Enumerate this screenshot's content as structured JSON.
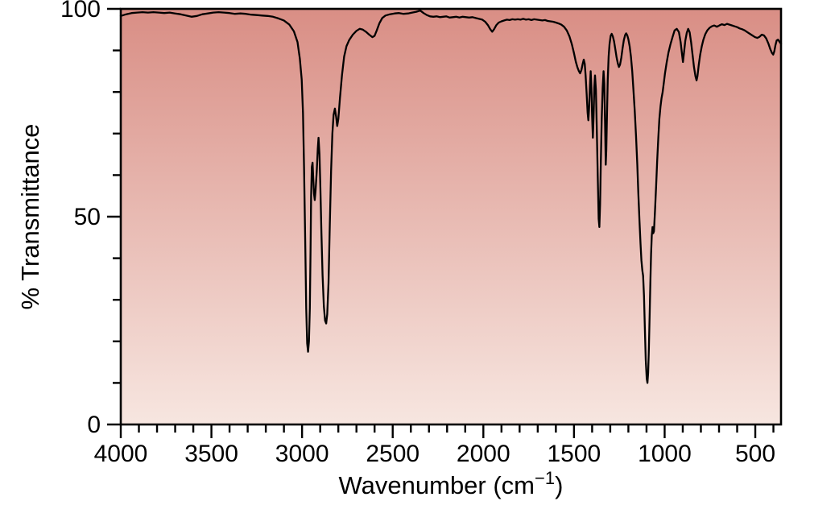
{
  "chart_data": {
    "type": "line",
    "title": "",
    "xlabel": "Wavenumber (cm⁻¹)",
    "ylabel": "% Transmittance",
    "x_range": [
      4000,
      358
    ],
    "y_range": [
      0,
      100
    ],
    "x_axis_reversed": true,
    "x_major_ticks": [
      4000,
      3500,
      3000,
      2500,
      2000,
      1500,
      1000,
      500
    ],
    "x_minor_tick_step": 100,
    "y_major_ticks": [
      0,
      50,
      100
    ],
    "y_minor_tick_step": 10,
    "grid": false,
    "legend": false,
    "line_color": "#000000",
    "axis_color": "#000000",
    "background_gradient": {
      "top": "#d98e85",
      "bottom": "#f7e6e0"
    },
    "series": [
      {
        "name": "% transmittance",
        "points": [
          [
            4000,
            98.3
          ],
          [
            3970,
            98.7
          ],
          [
            3940,
            99.0
          ],
          [
            3910,
            99.1
          ],
          [
            3880,
            99.2
          ],
          [
            3850,
            99.1
          ],
          [
            3820,
            99.2
          ],
          [
            3790,
            99.1
          ],
          [
            3760,
            99.0
          ],
          [
            3730,
            99.1
          ],
          [
            3700,
            98.9
          ],
          [
            3670,
            98.7
          ],
          [
            3640,
            98.4
          ],
          [
            3610,
            98.1
          ],
          [
            3580,
            98.3
          ],
          [
            3550,
            98.7
          ],
          [
            3520,
            98.9
          ],
          [
            3490,
            99.1
          ],
          [
            3460,
            99.2
          ],
          [
            3430,
            99.1
          ],
          [
            3400,
            99.0
          ],
          [
            3370,
            98.8
          ],
          [
            3340,
            98.9
          ],
          [
            3310,
            98.8
          ],
          [
            3280,
            98.6
          ],
          [
            3250,
            98.5
          ],
          [
            3220,
            98.4
          ],
          [
            3190,
            98.3
          ],
          [
            3160,
            98.1
          ],
          [
            3130,
            97.7
          ],
          [
            3100,
            97.2
          ],
          [
            3070,
            96.2
          ],
          [
            3045,
            94.6
          ],
          [
            3025,
            92.0
          ],
          [
            3012,
            88.0
          ],
          [
            3002,
            83.0
          ],
          [
            2995,
            75.0
          ],
          [
            2989,
            62.0
          ],
          [
            2983,
            45.0
          ],
          [
            2977,
            28.0
          ],
          [
            2972,
            19.5
          ],
          [
            2967,
            17.5
          ],
          [
            2962,
            20.0
          ],
          [
            2957,
            28.0
          ],
          [
            2953,
            42.0
          ],
          [
            2950,
            55.0
          ],
          [
            2946,
            62.0
          ],
          [
            2942,
            63.0
          ],
          [
            2938,
            59.0
          ],
          [
            2934,
            55.5
          ],
          [
            2930,
            54.0
          ],
          [
            2925,
            56.5
          ],
          [
            2919,
            61.0
          ],
          [
            2913,
            66.5
          ],
          [
            2909,
            69.0
          ],
          [
            2904,
            65.0
          ],
          [
            2899,
            57.0
          ],
          [
            2893,
            46.0
          ],
          [
            2887,
            36.0
          ],
          [
            2880,
            28.5
          ],
          [
            2873,
            25.0
          ],
          [
            2867,
            24.3
          ],
          [
            2861,
            26.5
          ],
          [
            2854,
            34.0
          ],
          [
            2847,
            48.0
          ],
          [
            2840,
            61.0
          ],
          [
            2833,
            70.0
          ],
          [
            2826,
            74.5
          ],
          [
            2819,
            76.0
          ],
          [
            2812,
            74.0
          ],
          [
            2806,
            71.8
          ],
          [
            2800,
            73.5
          ],
          [
            2791,
            78.5
          ],
          [
            2780,
            84.0
          ],
          [
            2768,
            88.5
          ],
          [
            2755,
            91.0
          ],
          [
            2740,
            92.5
          ],
          [
            2720,
            93.8
          ],
          [
            2700,
            94.7
          ],
          [
            2682,
            95.2
          ],
          [
            2665,
            95.0
          ],
          [
            2648,
            94.5
          ],
          [
            2630,
            93.8
          ],
          [
            2612,
            93.2
          ],
          [
            2600,
            93.5
          ],
          [
            2588,
            94.8
          ],
          [
            2574,
            96.5
          ],
          [
            2558,
            97.8
          ],
          [
            2540,
            98.4
          ],
          [
            2515,
            98.7
          ],
          [
            2490,
            98.9
          ],
          [
            2465,
            99.0
          ],
          [
            2440,
            98.8
          ],
          [
            2415,
            98.9
          ],
          [
            2392,
            99.1
          ],
          [
            2370,
            99.3
          ],
          [
            2348,
            99.6
          ],
          [
            2330,
            99.0
          ],
          [
            2312,
            98.5
          ],
          [
            2294,
            98.2
          ],
          [
            2276,
            98.1
          ],
          [
            2258,
            98.2
          ],
          [
            2240,
            98.0
          ],
          [
            2222,
            98.1
          ],
          [
            2204,
            98.2
          ],
          [
            2186,
            97.9
          ],
          [
            2168,
            98.0
          ],
          [
            2150,
            98.1
          ],
          [
            2132,
            97.9
          ],
          [
            2114,
            98.1
          ],
          [
            2096,
            98.0
          ],
          [
            2078,
            97.9
          ],
          [
            2060,
            98.0
          ],
          [
            2042,
            97.8
          ],
          [
            2024,
            97.6
          ],
          [
            2006,
            97.4
          ],
          [
            1990,
            96.9
          ],
          [
            1975,
            96.1
          ],
          [
            1962,
            95.1
          ],
          [
            1951,
            94.5
          ],
          [
            1941,
            95.1
          ],
          [
            1928,
            96.1
          ],
          [
            1915,
            96.7
          ],
          [
            1900,
            97.0
          ],
          [
            1885,
            97.2
          ],
          [
            1870,
            97.4
          ],
          [
            1855,
            97.3
          ],
          [
            1840,
            97.5
          ],
          [
            1825,
            97.4
          ],
          [
            1810,
            97.5
          ],
          [
            1795,
            97.4
          ],
          [
            1780,
            97.6
          ],
          [
            1765,
            97.4
          ],
          [
            1750,
            97.5
          ],
          [
            1735,
            97.3
          ],
          [
            1720,
            97.5
          ],
          [
            1705,
            97.4
          ],
          [
            1690,
            97.3
          ],
          [
            1675,
            97.2
          ],
          [
            1660,
            97.3
          ],
          [
            1645,
            97.1
          ],
          [
            1630,
            97.0
          ],
          [
            1615,
            96.9
          ],
          [
            1600,
            96.7
          ],
          [
            1585,
            96.5
          ],
          [
            1570,
            96.2
          ],
          [
            1555,
            95.7
          ],
          [
            1540,
            94.8
          ],
          [
            1525,
            93.4
          ],
          [
            1512,
            91.5
          ],
          [
            1500,
            89.3
          ],
          [
            1490,
            87.3
          ],
          [
            1481,
            85.9
          ],
          [
            1473,
            85.0
          ],
          [
            1466,
            84.5
          ],
          [
            1459,
            85.3
          ],
          [
            1452,
            86.8
          ],
          [
            1446,
            87.8
          ],
          [
            1441,
            86.8
          ],
          [
            1436,
            84.0
          ],
          [
            1430,
            79.5
          ],
          [
            1425,
            75.0
          ],
          [
            1421,
            73.2
          ],
          [
            1417,
            76.0
          ],
          [
            1412,
            81.5
          ],
          [
            1408,
            85.0
          ],
          [
            1404,
            81.0
          ],
          [
            1400,
            74.0
          ],
          [
            1396,
            69.0
          ],
          [
            1392,
            74.0
          ],
          [
            1388,
            81.0
          ],
          [
            1384,
            84.0
          ],
          [
            1379,
            80.5
          ],
          [
            1374,
            71.0
          ],
          [
            1369,
            59.5
          ],
          [
            1364,
            49.5
          ],
          [
            1360,
            47.5
          ],
          [
            1356,
            53.0
          ],
          [
            1352,
            63.0
          ],
          [
            1347,
            73.5
          ],
          [
            1342,
            81.0
          ],
          [
            1337,
            85.0
          ],
          [
            1333,
            82.0
          ],
          [
            1329,
            73.0
          ],
          [
            1325,
            62.5
          ],
          [
            1322,
            66.0
          ],
          [
            1318,
            75.0
          ],
          [
            1314,
            83.0
          ],
          [
            1309,
            88.5
          ],
          [
            1304,
            91.5
          ],
          [
            1298,
            93.5
          ],
          [
            1292,
            94.0
          ],
          [
            1286,
            93.4
          ],
          [
            1279,
            92.2
          ],
          [
            1272,
            90.3
          ],
          [
            1265,
            88.3
          ],
          [
            1258,
            86.8
          ],
          [
            1252,
            86.0
          ],
          [
            1246,
            86.6
          ],
          [
            1239,
            88.2
          ],
          [
            1232,
            90.5
          ],
          [
            1225,
            92.5
          ],
          [
            1218,
            93.7
          ],
          [
            1212,
            94.1
          ],
          [
            1206,
            93.6
          ],
          [
            1200,
            92.7
          ],
          [
            1193,
            91.0
          ],
          [
            1186,
            88.5
          ],
          [
            1179,
            85.0
          ],
          [
            1172,
            80.5
          ],
          [
            1165,
            75.5
          ],
          [
            1158,
            69.5
          ],
          [
            1151,
            62.5
          ],
          [
            1145,
            55.5
          ],
          [
            1139,
            49.0
          ],
          [
            1133,
            43.5
          ],
          [
            1128,
            39.5
          ],
          [
            1123,
            37.0
          ],
          [
            1119,
            35.8
          ],
          [
            1114,
            31.0
          ],
          [
            1109,
            23.0
          ],
          [
            1104,
            15.5
          ],
          [
            1099,
            11.0
          ],
          [
            1095,
            10.0
          ],
          [
            1091,
            12.5
          ],
          [
            1087,
            18.5
          ],
          [
            1083,
            26.0
          ],
          [
            1079,
            34.0
          ],
          [
            1075,
            41.0
          ],
          [
            1071,
            45.5
          ],
          [
            1067,
            47.5
          ],
          [
            1063,
            46.0
          ],
          [
            1059,
            46.5
          ],
          [
            1053,
            51.5
          ],
          [
            1047,
            57.5
          ],
          [
            1041,
            63.5
          ],
          [
            1035,
            69.0
          ],
          [
            1029,
            73.5
          ],
          [
            1023,
            76.5
          ],
          [
            1017,
            78.5
          ],
          [
            1011,
            80.0
          ],
          [
            1005,
            82.0
          ],
          [
            998,
            84.5
          ],
          [
            989,
            87.0
          ],
          [
            979,
            89.5
          ],
          [
            968,
            91.5
          ],
          [
            956,
            93.3
          ],
          [
            945,
            94.8
          ],
          [
            933,
            95.2
          ],
          [
            921,
            94.4
          ],
          [
            912,
            92.0
          ],
          [
            905,
            89.5
          ],
          [
            899,
            87.2
          ],
          [
            893,
            89.5
          ],
          [
            886,
            92.3
          ],
          [
            878,
            94.2
          ],
          [
            870,
            95.2
          ],
          [
            862,
            94.4
          ],
          [
            854,
            92.0
          ],
          [
            846,
            89.0
          ],
          [
            838,
            86.0
          ],
          [
            830,
            83.8
          ],
          [
            824,
            82.8
          ],
          [
            819,
            83.8
          ],
          [
            812,
            86.5
          ],
          [
            804,
            89.0
          ],
          [
            795,
            91.0
          ],
          [
            786,
            92.6
          ],
          [
            776,
            93.9
          ],
          [
            765,
            94.8
          ],
          [
            753,
            95.4
          ],
          [
            740,
            95.8
          ],
          [
            726,
            96.0
          ],
          [
            712,
            95.7
          ],
          [
            698,
            96.0
          ],
          [
            684,
            96.3
          ],
          [
            670,
            96.1
          ],
          [
            656,
            96.4
          ],
          [
            642,
            96.2
          ],
          [
            628,
            96.0
          ],
          [
            614,
            95.8
          ],
          [
            600,
            95.6
          ],
          [
            586,
            95.3
          ],
          [
            572,
            95.1
          ],
          [
            558,
            94.8
          ],
          [
            544,
            94.4
          ],
          [
            530,
            94.0
          ],
          [
            516,
            93.6
          ],
          [
            502,
            93.2
          ],
          [
            489,
            93.0
          ],
          [
            476,
            93.3
          ],
          [
            464,
            93.8
          ],
          [
            452,
            93.6
          ],
          [
            440,
            92.9
          ],
          [
            428,
            91.7
          ],
          [
            417,
            90.3
          ],
          [
            408,
            89.4
          ],
          [
            401,
            89.0
          ],
          [
            395,
            89.8
          ],
          [
            389,
            91.2
          ],
          [
            382,
            92.4
          ],
          [
            375,
            92.6
          ],
          [
            368,
            92.2
          ],
          [
            362,
            91.8
          ],
          [
            358,
            91.6
          ]
        ]
      }
    ]
  },
  "axes": {
    "ylabel": "% Transmittance",
    "xlabel_main": "Wavenumber (cm",
    "xlabel_sup": "−1",
    "xlabel_close": ")"
  }
}
